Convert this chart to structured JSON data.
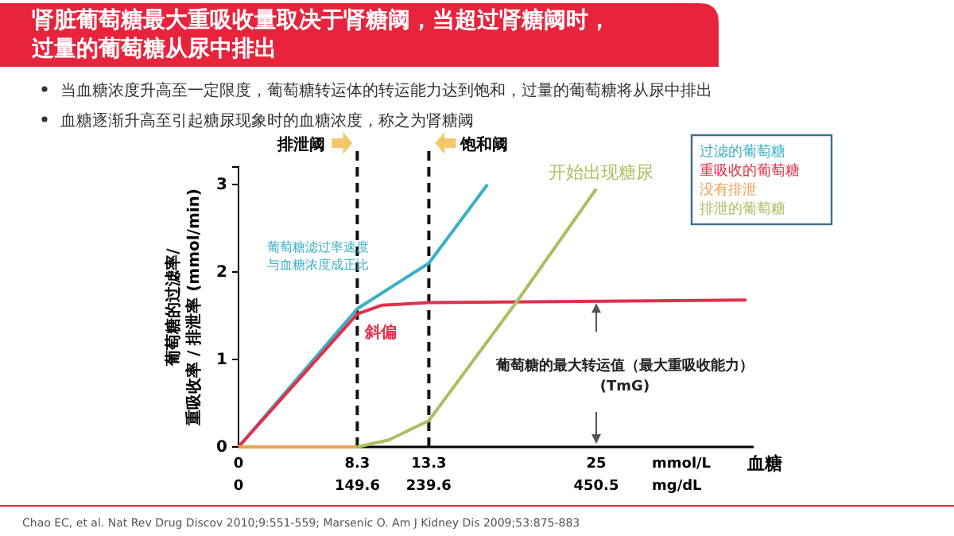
{
  "chart_data": {
    "type": "line",
    "title": "肾脏葡萄糖最大重吸收量取决于肾糖阈，当超过肾糖阈时，过量的葡萄糖从尿中排出",
    "xlabel": "血糖",
    "ylabel": "葡萄糖的过滤率/重吸收率 / 排泄率 (mmol/min)",
    "xlim": [
      0,
      36
    ],
    "xticks": [
      0,
      8.3,
      13.3,
      25
    ],
    "x2lim": [
      0,
      648.7
    ],
    "x2ticks": [
      0,
      149.6,
      239.6,
      450.5
    ],
    "ylim": [
      0,
      3.2
    ],
    "yticks": [
      0,
      1,
      2,
      3
    ],
    "grid": false,
    "legend": "top right",
    "series": [
      {
        "name": "过滤的葡萄糖",
        "color": "#3ab0c8",
        "x": [
          0,
          8.3,
          13.3,
          17.4
        ],
        "values": [
          0,
          1.58,
          2.1,
          3.0
        ]
      },
      {
        "name": "重吸收的葡萄糖",
        "color": "#e0304a",
        "x": [
          0,
          8.3,
          10,
          13.3,
          35.5
        ],
        "values": [
          0,
          1.52,
          1.62,
          1.65,
          1.68
        ]
      },
      {
        "name": "没有排泄",
        "color": "#f0a050",
        "x": [
          0,
          8.3
        ],
        "values": [
          0,
          0
        ]
      },
      {
        "name": "排泄的葡萄糖",
        "color": "#a8c060",
        "x": [
          8.3,
          10.5,
          13.3,
          19.4,
          25
        ],
        "values": [
          0,
          0.08,
          0.3,
          1.65,
          2.95
        ]
      }
    ],
    "ref_lines": [
      {
        "axis": "x",
        "value": 8.3,
        "label": "排泄阈",
        "color": "#111111",
        "line_style": "dashed"
      },
      {
        "axis": "x",
        "value": 13.3,
        "label": "饱和阈",
        "color": "#111111",
        "line_style": "dashed"
      }
    ],
    "annotations": [
      "当血糖浓度升高至一定限度，葡萄糖转运体的转运能力达到饱和，过量的葡萄糖将从尿中排出",
      "血糖逐渐升高至引起糖尿现象时的血糖浓度，称之为肾糖阈",
      "葡萄糖滤过率速度与血糖浓度成正比",
      "斜偏",
      "开始出现糖尿",
      "葡萄糖的最大转运值（最大重吸收能力）(TmG)",
      "mmol/L",
      "mg/dL",
      "Chao EC, et al. Nat Rev Drug Discov 2010;9:551-559; Marsenic O. Am J Kidney Dis 2009;53:875-883"
    ]
  }
}
